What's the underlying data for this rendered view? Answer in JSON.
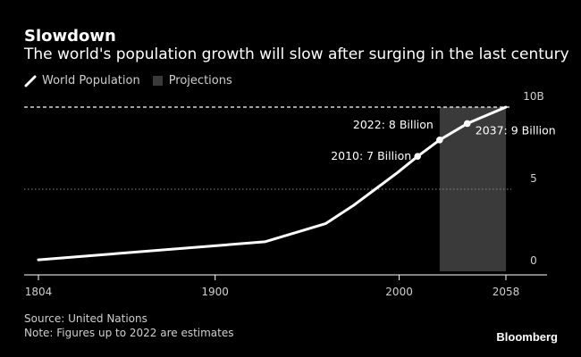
{
  "title": "Slowdown",
  "subtitle": "The world's population growth will slow after surging in the last century",
  "legend": {
    "series_label": "World Population",
    "projection_label": "Projections"
  },
  "source": "Source: United Nations",
  "note": "Note: Figures up to 2022 are estimates",
  "brand": "Bloomberg",
  "colors": {
    "background": "#000000",
    "line": "#ffffff",
    "projection_fill": "#3a3a3a",
    "grid": "#8a8a8a",
    "text": "#cfcfcf"
  },
  "chart_data": {
    "type": "line",
    "title": "Slowdown",
    "xlabel": "",
    "ylabel": "",
    "xlim": [
      1804,
      2058
    ],
    "ylim": [
      0,
      10
    ],
    "x_ticks": [
      1804,
      1900,
      2000,
      2058
    ],
    "y_ticks": [
      {
        "value": 0,
        "label": "0"
      },
      {
        "value": 5,
        "label": "5"
      },
      {
        "value": 10,
        "label": "10B"
      }
    ],
    "projection_range": [
      2022,
      2058
    ],
    "series": [
      {
        "name": "World Population",
        "points": [
          {
            "x": 1804,
            "y": 0.7
          },
          {
            "x": 1927,
            "y": 1.8
          },
          {
            "x": 1960,
            "y": 2.9
          },
          {
            "x": 1975,
            "y": 4.0
          },
          {
            "x": 1987,
            "y": 5.0
          },
          {
            "x": 1999,
            "y": 6.0
          },
          {
            "x": 2010,
            "y": 7.0
          },
          {
            "x": 2022,
            "y": 8.0
          },
          {
            "x": 2037,
            "y": 9.0
          },
          {
            "x": 2058,
            "y": 10.0
          }
        ]
      }
    ],
    "annotations": [
      {
        "x": 2010,
        "y": 7,
        "label": "2010: 7 Billion"
      },
      {
        "x": 2022,
        "y": 8,
        "label": "2022: 8 Billion"
      },
      {
        "x": 2037,
        "y": 9,
        "label": "2037: 9 Billion"
      }
    ]
  }
}
